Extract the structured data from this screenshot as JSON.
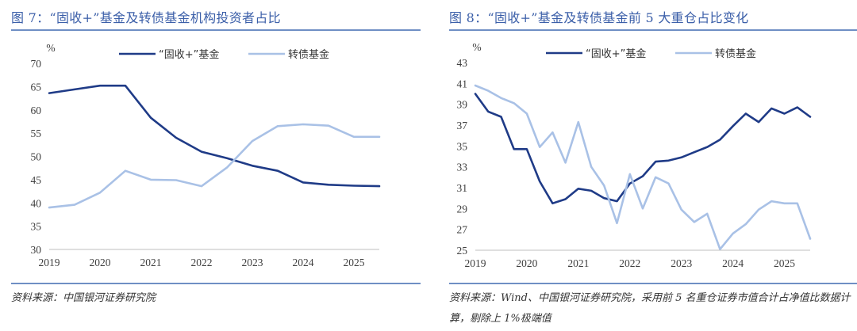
{
  "colors": {
    "title": "#3a5ea8",
    "rule": "#6f8fc4",
    "series_dark": "#1f3b87",
    "series_light": "#a9c1e6"
  },
  "left": {
    "title": "图 7：“固收+”基金及转债基金机构投资者占比",
    "source": "资料来源：中国银河证券研究院",
    "legend": [
      "“固收+”基金",
      "转债基金"
    ],
    "unit": "%"
  },
  "right": {
    "title": "图 8：“固收+”基金及转债基金前 5 大重仓占比变化",
    "source": "资料来源：Wind、中国银河证券研究院，采用前 5 名重仓证券市值合计占净值比数据计算，剔除上 1%极端值",
    "legend": [
      "“固收+”基金",
      "转债基金"
    ],
    "unit": "%"
  },
  "chart_data": [
    {
      "type": "line",
      "title": "图 7：“固收+”基金及转债基金机构投资者占比",
      "ylabel": "%",
      "ylim": [
        30,
        70
      ],
      "yticks": [
        30,
        35,
        40,
        45,
        50,
        55,
        60,
        65,
        70
      ],
      "xlim": [
        2019,
        2025.5
      ],
      "xticks": [
        "2019",
        "2020",
        "2021",
        "2022",
        "2023",
        "2024",
        "2025"
      ],
      "grid": false,
      "legend_position": "top",
      "series": [
        {
          "name": "“固收+”基金",
          "x": [
            2019,
            2019.5,
            2020,
            2020.5,
            2021,
            2021.5,
            2022,
            2022.5,
            2023,
            2023.5,
            2024,
            2024.5,
            2025,
            2025.5
          ],
          "values": [
            63.6,
            64.4,
            65.2,
            65.2,
            58.3,
            54.0,
            51.0,
            49.6,
            48.0,
            46.9,
            44.4,
            43.9,
            43.7,
            43.6
          ]
        },
        {
          "name": "转债基金",
          "x": [
            2019,
            2019.5,
            2020,
            2020.5,
            2021,
            2021.5,
            2022,
            2022.5,
            2023,
            2023.5,
            2024,
            2024.5,
            2025,
            2025.5
          ],
          "values": [
            39.0,
            39.6,
            42.2,
            46.9,
            45.0,
            44.9,
            43.6,
            47.6,
            53.3,
            56.5,
            56.9,
            56.6,
            54.2,
            54.2
          ]
        }
      ]
    },
    {
      "type": "line",
      "title": "图 8：“固收+”基金及转债基金前 5 大重仓占比变化",
      "ylabel": "%",
      "ylim": [
        25,
        43
      ],
      "yticks": [
        25,
        27,
        29,
        31,
        33,
        35,
        37,
        39,
        41,
        43
      ],
      "xlim": [
        2019,
        2025.5
      ],
      "xticks": [
        "2019",
        "2020",
        "2021",
        "2022",
        "2023",
        "2024",
        "2025"
      ],
      "grid": false,
      "legend_position": "top",
      "series": [
        {
          "name": "“固收+”基金",
          "x": [
            2019,
            2019.25,
            2019.5,
            2019.75,
            2020,
            2020.25,
            2020.5,
            2020.75,
            2021,
            2021.25,
            2021.5,
            2021.75,
            2022,
            2022.25,
            2022.5,
            2022.75,
            2023,
            2023.25,
            2023.5,
            2023.75,
            2024,
            2024.25,
            2024.5,
            2024.75,
            2025,
            2025.25,
            2025.5
          ],
          "values": [
            40.0,
            38.3,
            37.8,
            34.7,
            34.7,
            31.6,
            29.5,
            29.9,
            30.9,
            30.7,
            30.0,
            29.7,
            31.4,
            32.1,
            33.5,
            33.6,
            33.9,
            34.4,
            34.9,
            35.6,
            36.9,
            38.1,
            37.3,
            38.6,
            38.1,
            38.7,
            37.8
          ]
        },
        {
          "name": "转债基金",
          "x": [
            2019,
            2019.25,
            2019.5,
            2019.75,
            2020,
            2020.25,
            2020.5,
            2020.75,
            2021,
            2021.25,
            2021.5,
            2021.75,
            2022,
            2022.25,
            2022.5,
            2022.75,
            2023,
            2023.25,
            2023.5,
            2023.75,
            2024,
            2024.25,
            2024.5,
            2024.75,
            2025,
            2025.25,
            2025.5
          ],
          "values": [
            40.8,
            40.3,
            39.6,
            39.1,
            38.1,
            34.9,
            36.3,
            33.4,
            37.3,
            33.0,
            31.2,
            27.6,
            32.3,
            29.0,
            32.0,
            31.4,
            28.9,
            27.7,
            28.5,
            25.1,
            26.6,
            27.5,
            28.9,
            29.7,
            29.5,
            29.5,
            26.1
          ]
        }
      ]
    }
  ]
}
